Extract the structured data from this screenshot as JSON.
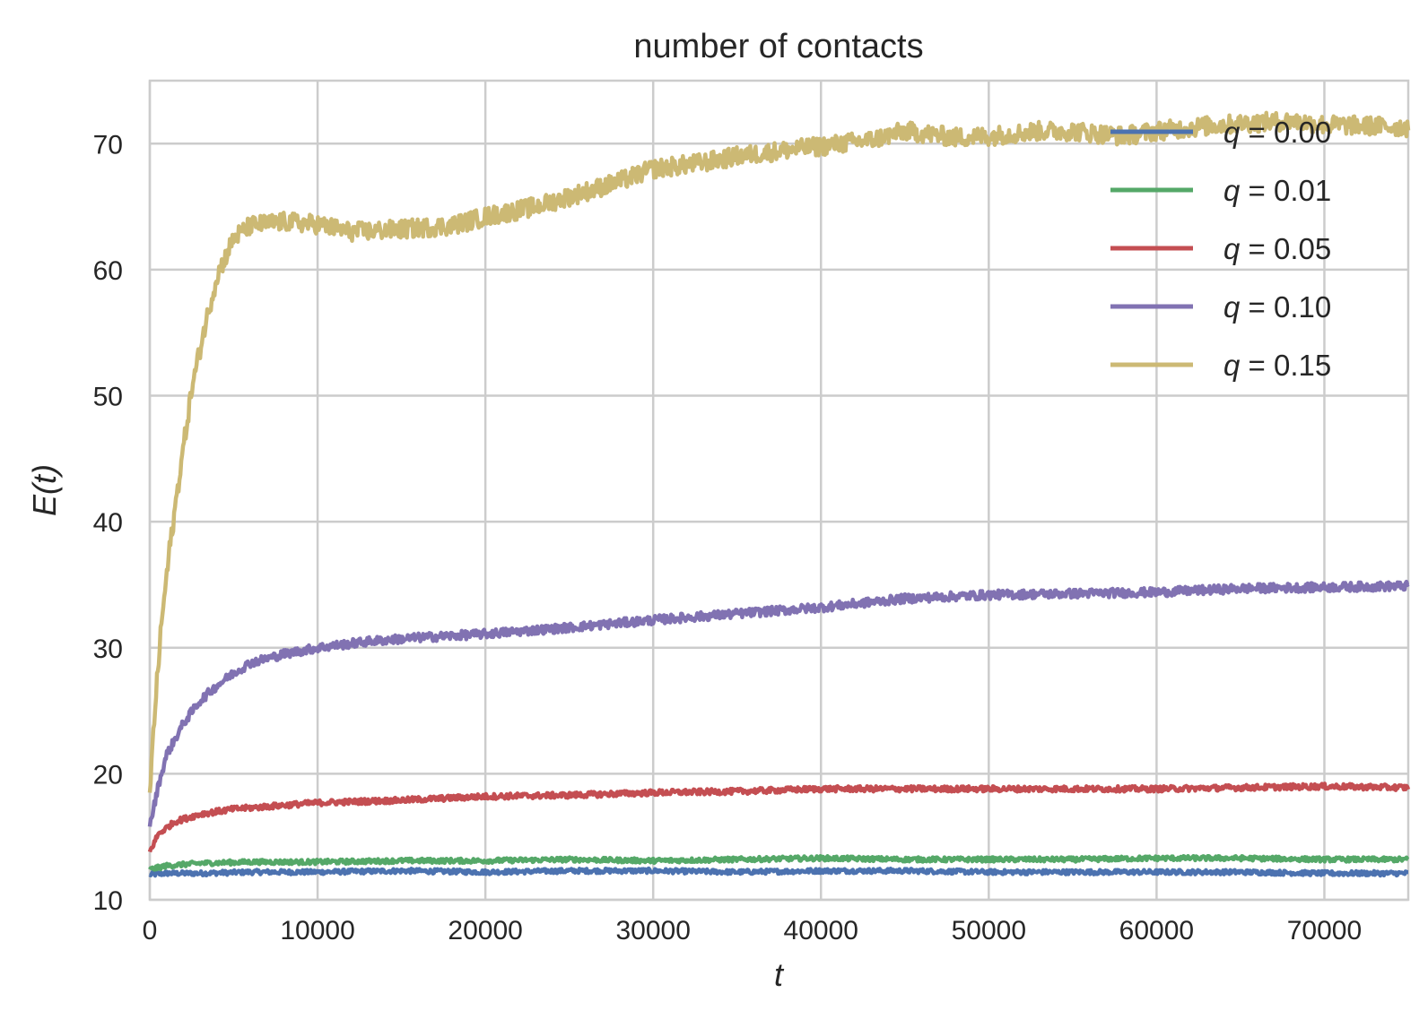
{
  "chart_data": {
    "type": "line",
    "title": "number of contacts",
    "xlabel": "t",
    "ylabel": "E(t)",
    "xlim": [
      0,
      75000
    ],
    "ylim": [
      10,
      75
    ],
    "xticks": [
      0,
      10000,
      20000,
      30000,
      40000,
      50000,
      60000,
      70000
    ],
    "yticks": [
      10,
      20,
      30,
      40,
      50,
      60,
      70
    ],
    "grid": true,
    "legend_position": "top-right",
    "series": [
      {
        "name": "q = 0.00",
        "q_label": "0.00",
        "color": "#4c72b0",
        "x": [
          0,
          1000,
          3000,
          6000,
          10000,
          15000,
          20000,
          25000,
          30000,
          35000,
          40000,
          45000,
          50000,
          55000,
          60000,
          65000,
          70000,
          75000
        ],
        "y": [
          12.0,
          12.1,
          12.1,
          12.2,
          12.2,
          12.3,
          12.2,
          12.3,
          12.3,
          12.2,
          12.3,
          12.3,
          12.2,
          12.2,
          12.2,
          12.2,
          12.1,
          12.1
        ]
      },
      {
        "name": "q = 0.01",
        "q_label": "0.01",
        "color": "#55a868",
        "x": [
          0,
          1000,
          3000,
          6000,
          10000,
          15000,
          20000,
          25000,
          30000,
          35000,
          40000,
          45000,
          50000,
          55000,
          60000,
          65000,
          70000,
          75000
        ],
        "y": [
          12.4,
          12.7,
          12.9,
          13.0,
          13.0,
          13.1,
          13.1,
          13.2,
          13.1,
          13.2,
          13.3,
          13.2,
          13.2,
          13.2,
          13.3,
          13.3,
          13.2,
          13.2
        ]
      },
      {
        "name": "q = 0.05",
        "q_label": "0.05",
        "color": "#c44e52",
        "x": [
          0,
          500,
          1500,
          3000,
          5000,
          8000,
          10000,
          15000,
          20000,
          25000,
          30000,
          35000,
          40000,
          45000,
          50000,
          55000,
          60000,
          65000,
          70000,
          75000
        ],
        "y": [
          13.8,
          15.2,
          16.2,
          16.8,
          17.2,
          17.5,
          17.7,
          17.9,
          18.2,
          18.3,
          18.5,
          18.6,
          18.8,
          18.8,
          18.8,
          18.8,
          18.8,
          18.9,
          19.0,
          18.9
        ]
      },
      {
        "name": "q = 0.10",
        "q_label": "0.10",
        "color": "#8172b2",
        "x": [
          0,
          500,
          1000,
          2000,
          3000,
          4000,
          5000,
          6000,
          8000,
          10000,
          13000,
          16000,
          20000,
          25000,
          30000,
          35000,
          40000,
          45000,
          50000,
          55000,
          60000,
          65000,
          70000,
          75000
        ],
        "y": [
          15.8,
          19.0,
          21.5,
          24.0,
          25.8,
          27.0,
          28.0,
          28.8,
          29.5,
          30.0,
          30.5,
          30.8,
          31.1,
          31.6,
          32.2,
          32.7,
          33.2,
          33.9,
          34.2,
          34.3,
          34.4,
          34.7,
          34.8,
          34.9
        ]
      },
      {
        "name": "q = 0.15",
        "q_label": "0.15",
        "color": "#ccb974",
        "x": [
          0,
          300,
          700,
          1200,
          1800,
          2500,
          3200,
          4000,
          5000,
          6000,
          8000,
          10000,
          12000,
          15000,
          18000,
          20000,
          23000,
          25000,
          28000,
          30000,
          33000,
          35000,
          38000,
          40000,
          43000,
          45000,
          48000,
          50000,
          53000,
          55000,
          58000,
          60000,
          63000,
          65000,
          68000,
          70000,
          73000,
          75000
        ],
        "y": [
          18.5,
          25.0,
          32.0,
          38.0,
          44.0,
          50.5,
          55.0,
          59.5,
          62.5,
          63.5,
          63.8,
          63.6,
          63.0,
          63.2,
          63.5,
          64.2,
          65.0,
          65.8,
          67.0,
          68.0,
          68.5,
          69.0,
          69.5,
          69.8,
          70.3,
          71.0,
          70.5,
          70.6,
          71.0,
          71.0,
          70.6,
          71.0,
          71.4,
          71.6,
          71.8,
          71.5,
          71.4,
          71.3
        ]
      }
    ]
  }
}
